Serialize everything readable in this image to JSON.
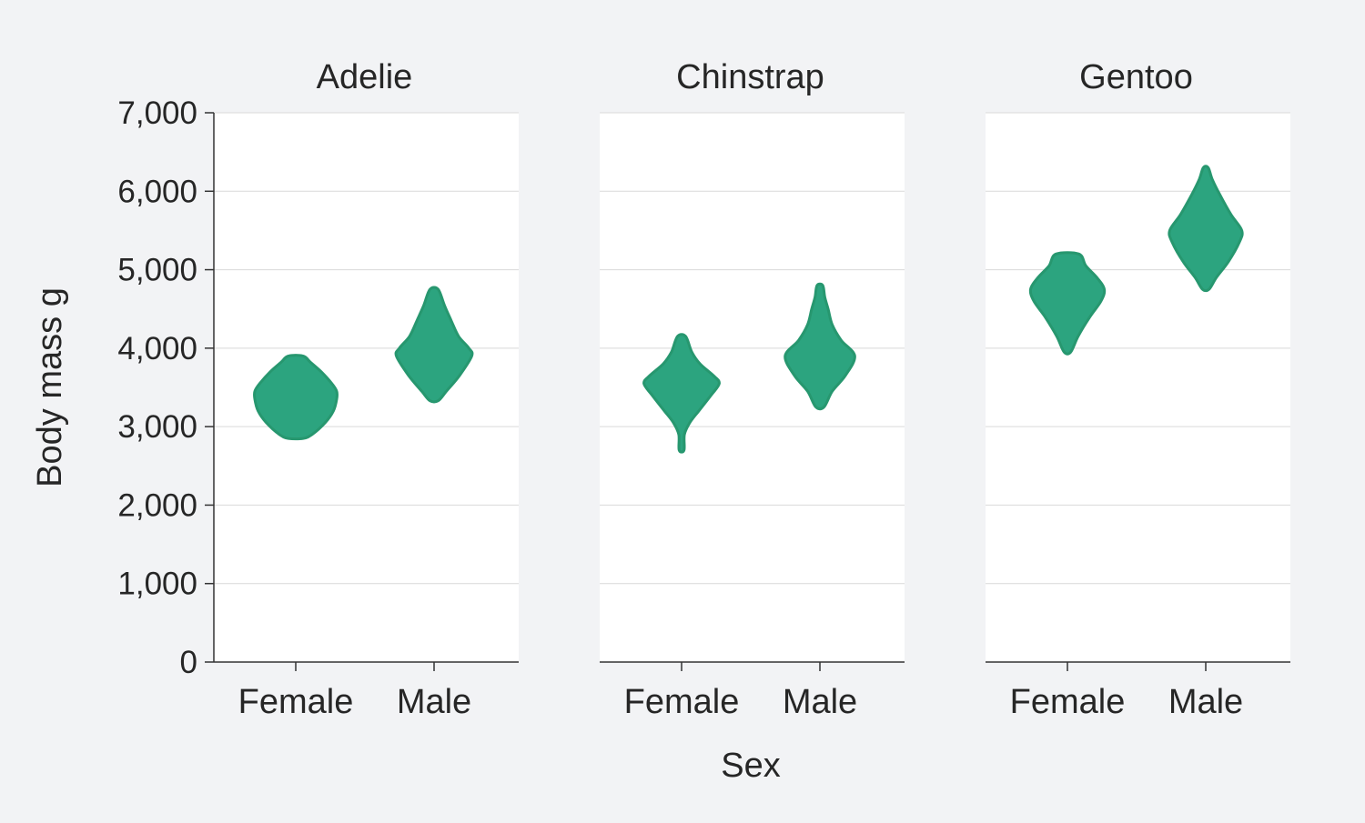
{
  "chart_data": {
    "type": "violin",
    "facet_by": "species",
    "xlabel": "Sex",
    "ylabel": "Body mass g",
    "ylim": [
      0,
      7000
    ],
    "yticks": [
      0,
      1000,
      2000,
      3000,
      4000,
      5000,
      6000,
      7000
    ],
    "ytick_labels": [
      "0",
      "1,000",
      "2,000",
      "3,000",
      "4,000",
      "5,000",
      "6,000",
      "7,000"
    ],
    "categories": [
      "Female",
      "Male"
    ],
    "grid": true,
    "colors": {
      "violin": "#2ca47f",
      "violin_stroke": "#27976f",
      "panel_background": "#ffffff",
      "page_background": "#f2f3f5"
    },
    "panels": [
      {
        "title": "Adelie",
        "violins": [
          {
            "category": "Female",
            "profile": [
              [
                2850,
                0.18
              ],
              [
                2900,
                0.4
              ],
              [
                3050,
                0.72
              ],
              [
                3200,
                0.92
              ],
              [
                3350,
                1.0
              ],
              [
                3450,
                1.0
              ],
              [
                3550,
                0.88
              ],
              [
                3700,
                0.62
              ],
              [
                3820,
                0.36
              ],
              [
                3900,
                0.18
              ]
            ]
          },
          {
            "category": "Male",
            "profile": [
              [
                3330,
                0.1
              ],
              [
                3450,
                0.3
              ],
              [
                3650,
                0.62
              ],
              [
                3900,
                0.92
              ],
              [
                4000,
                0.85
              ],
              [
                4150,
                0.6
              ],
              [
                4350,
                0.42
              ],
              [
                4550,
                0.25
              ],
              [
                4750,
                0.1
              ]
            ]
          }
        ]
      },
      {
        "title": "Chinstrap",
        "violins": [
          {
            "category": "Female",
            "profile": [
              [
                2700,
                0.06
              ],
              [
                2900,
                0.07
              ],
              [
                3050,
                0.2
              ],
              [
                3200,
                0.42
              ],
              [
                3400,
                0.72
              ],
              [
                3550,
                0.92
              ],
              [
                3650,
                0.78
              ],
              [
                3800,
                0.45
              ],
              [
                3950,
                0.25
              ],
              [
                4150,
                0.1
              ]
            ]
          },
          {
            "category": "Male",
            "profile": [
              [
                3250,
                0.1
              ],
              [
                3450,
                0.3
              ],
              [
                3650,
                0.62
              ],
              [
                3900,
                0.85
              ],
              [
                4100,
                0.52
              ],
              [
                4300,
                0.3
              ],
              [
                4500,
                0.2
              ],
              [
                4650,
                0.12
              ],
              [
                4800,
                0.07
              ]
            ]
          }
        ]
      },
      {
        "title": "Gentoo",
        "violins": [
          {
            "category": "Female",
            "profile": [
              [
                3950,
                0.08
              ],
              [
                4150,
                0.26
              ],
              [
                4400,
                0.55
              ],
              [
                4600,
                0.82
              ],
              [
                4750,
                0.9
              ],
              [
                4900,
                0.72
              ],
              [
                5050,
                0.45
              ],
              [
                5200,
                0.28
              ]
            ]
          },
          {
            "category": "Male",
            "profile": [
              [
                4750,
                0.08
              ],
              [
                4900,
                0.26
              ],
              [
                5100,
                0.55
              ],
              [
                5350,
                0.82
              ],
              [
                5500,
                0.88
              ],
              [
                5700,
                0.62
              ],
              [
                5950,
                0.35
              ],
              [
                6150,
                0.16
              ],
              [
                6300,
                0.06
              ]
            ]
          }
        ]
      }
    ]
  }
}
